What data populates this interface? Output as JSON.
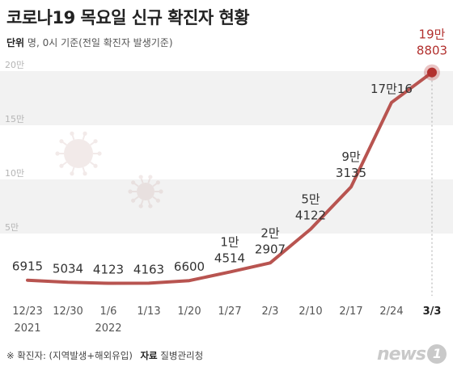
{
  "title": "코로나19 목요일 신규 확진자 현황",
  "unit_label": "단위",
  "unit_text": "명, 0시 기준(전일 확진자 발생기준)",
  "footnote": "※ 확진자: (지역발생+해외유입)",
  "source_label": "자료",
  "source": "질병관리청",
  "logo_text": "news",
  "logo_mark": "1",
  "colors": {
    "line": "#b85450",
    "highlight": "#b2302e",
    "band": "#f2f2f2",
    "text": "#333333"
  },
  "chart_data": {
    "type": "line",
    "title": "코로나19 목요일 신규 확진자 현황",
    "categories": [
      "12/23",
      "12/30",
      "1/6",
      "1/13",
      "1/20",
      "1/27",
      "2/3",
      "2/10",
      "2/17",
      "2/24",
      "3/3"
    ],
    "year_labels": [
      {
        "index": 0,
        "text": "2021"
      },
      {
        "index": 2,
        "text": "2022"
      }
    ],
    "series": [
      {
        "values": [
          6915,
          5034,
          4123,
          4163,
          6600,
          14514,
          22907,
          54122,
          93135,
          171016,
          198803
        ]
      }
    ],
    "data_labels": [
      [
        "6915"
      ],
      [
        "5034"
      ],
      [
        "4123"
      ],
      [
        "4163"
      ],
      [
        "6600"
      ],
      [
        "1만",
        "4514"
      ],
      [
        "2만",
        "2907"
      ],
      [
        "5만",
        "4122"
      ],
      [
        "9만",
        "3135"
      ],
      [
        "17만16"
      ],
      [
        "19만",
        "8803"
      ]
    ],
    "y_ticks": [
      {
        "value": 50000,
        "label": "5만"
      },
      {
        "value": 100000,
        "label": "10만"
      },
      {
        "value": 150000,
        "label": "15만"
      },
      {
        "value": 200000,
        "label": "20만"
      }
    ],
    "ylim": [
      0,
      200000
    ],
    "highlight_index": 10,
    "grid": true
  }
}
